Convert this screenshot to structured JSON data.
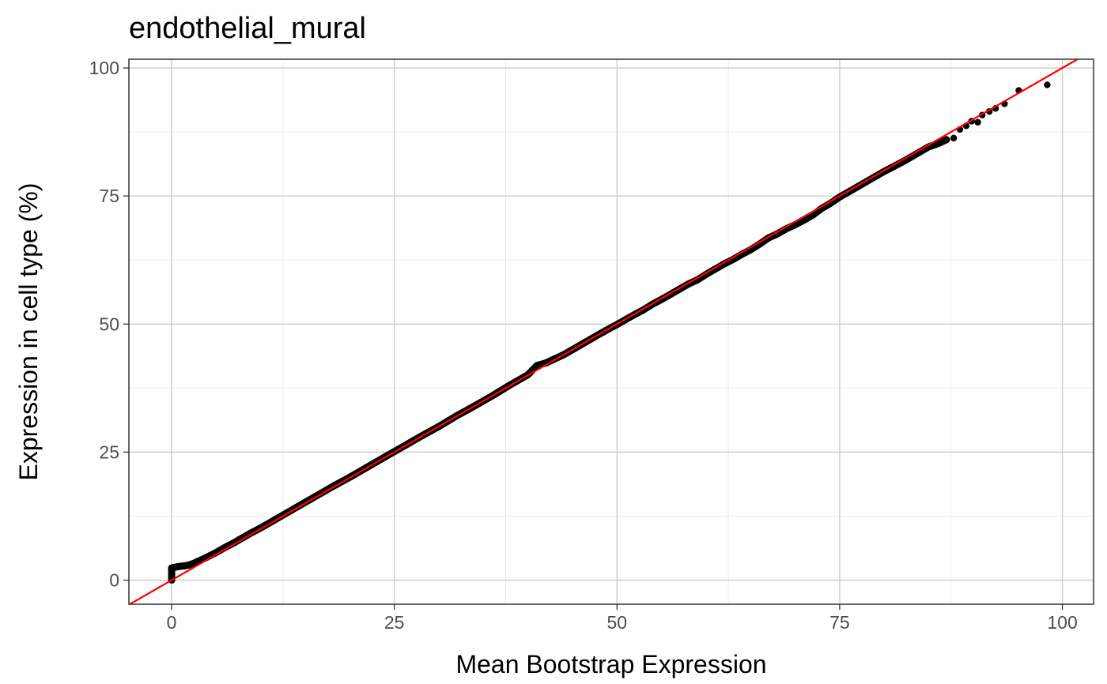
{
  "chart_data": {
    "type": "scatter",
    "title": "endothelial_mural",
    "xlabel": "Mean Bootstrap Expression",
    "ylabel": "Expression in cell type (%)",
    "xlim": [
      -4.8,
      103.5
    ],
    "ylim": [
      -4.7,
      101.7
    ],
    "x_ticks": [
      0,
      25,
      50,
      75,
      100
    ],
    "y_ticks": [
      0,
      25,
      50,
      75,
      100
    ],
    "x_tick_labels": [
      "0",
      "25",
      "50",
      "75",
      "100"
    ],
    "y_tick_labels": [
      "0",
      "25",
      "50",
      "75",
      "100"
    ],
    "grid": true,
    "legend": "none",
    "point_color": "#000000",
    "reference_line": {
      "type": "identity",
      "slope": 1,
      "intercept": 0,
      "color": "#ff0000"
    },
    "series": [
      {
        "points": [
          [
            0,
            0
          ],
          [
            0,
            0.5
          ],
          [
            0,
            1.0
          ],
          [
            0,
            1.5
          ],
          [
            0,
            2.0
          ],
          [
            0,
            2.4
          ],
          [
            0.3,
            2.5
          ],
          [
            0.6,
            2.6
          ],
          [
            1.0,
            2.7
          ],
          [
            1.5,
            2.8
          ],
          [
            2.0,
            3.0
          ],
          [
            2.5,
            3.3
          ],
          [
            3.0,
            3.7
          ],
          [
            3.5,
            4.1
          ],
          [
            4.0,
            4.5
          ],
          [
            5.0,
            5.4
          ],
          [
            6.0,
            6.4
          ],
          [
            7.0,
            7.3
          ],
          [
            8.0,
            8.3
          ],
          [
            9.0,
            9.3
          ],
          [
            10.0,
            10.2
          ],
          [
            12.0,
            12.2
          ],
          [
            14.0,
            14.2
          ],
          [
            16.0,
            16.2
          ],
          [
            18.0,
            18.2
          ],
          [
            20.0,
            20.1
          ],
          [
            22.0,
            22.1
          ],
          [
            24.0,
            24.1
          ],
          [
            26.0,
            26.1
          ],
          [
            28.0,
            28.1
          ],
          [
            30.0,
            30.0
          ],
          [
            32.0,
            32.1
          ],
          [
            34.0,
            34.0
          ],
          [
            36.0,
            36.0
          ],
          [
            38.0,
            38.1
          ],
          [
            40.0,
            40.1
          ],
          [
            41.0,
            41.9
          ],
          [
            42.0,
            42.4
          ],
          [
            43.0,
            43.2
          ],
          [
            44.0,
            44.0
          ],
          [
            45.0,
            45.0
          ],
          [
            46.0,
            46.0
          ],
          [
            47.0,
            47.0
          ],
          [
            48.0,
            48.0
          ],
          [
            49.0,
            49.0
          ],
          [
            50.0,
            49.9
          ],
          [
            51.0,
            50.9
          ],
          [
            52.0,
            51.9
          ],
          [
            53.0,
            52.8
          ],
          [
            54.0,
            53.9
          ],
          [
            55.0,
            54.8
          ],
          [
            56.0,
            55.8
          ],
          [
            57.0,
            56.8
          ],
          [
            58.0,
            57.8
          ],
          [
            59.0,
            58.6
          ],
          [
            60.0,
            59.7
          ],
          [
            61.0,
            60.7
          ],
          [
            62.0,
            61.7
          ],
          [
            63.0,
            62.6
          ],
          [
            64.0,
            63.6
          ],
          [
            65.0,
            64.5
          ],
          [
            66.0,
            65.6
          ],
          [
            67.0,
            66.8
          ],
          [
            68.0,
            67.6
          ],
          [
            69.0,
            68.6
          ],
          [
            70.0,
            69.4
          ],
          [
            71.0,
            70.3
          ],
          [
            72.0,
            71.3
          ],
          [
            73.0,
            72.6
          ],
          [
            74.0,
            73.6
          ],
          [
            75.0,
            74.8
          ],
          [
            76.0,
            75.8
          ],
          [
            77.0,
            76.8
          ],
          [
            78.0,
            77.8
          ],
          [
            79.0,
            78.8
          ],
          [
            80.0,
            79.8
          ],
          [
            81.0,
            80.7
          ],
          [
            82.0,
            81.6
          ],
          [
            83.0,
            82.6
          ],
          [
            84.0,
            83.6
          ],
          [
            85.0,
            84.6
          ],
          [
            86.0,
            85.2
          ],
          [
            87.0,
            86.0
          ],
          [
            87.8,
            86.3
          ],
          [
            88.5,
            88.0
          ],
          [
            89.2,
            88.7
          ],
          [
            89.8,
            89.6
          ],
          [
            90.5,
            89.4
          ],
          [
            91.0,
            90.8
          ],
          [
            91.8,
            91.5
          ],
          [
            92.5,
            92.1
          ],
          [
            93.5,
            93.0
          ],
          [
            95.1,
            95.6
          ],
          [
            98.3,
            96.7
          ]
        ]
      }
    ]
  }
}
